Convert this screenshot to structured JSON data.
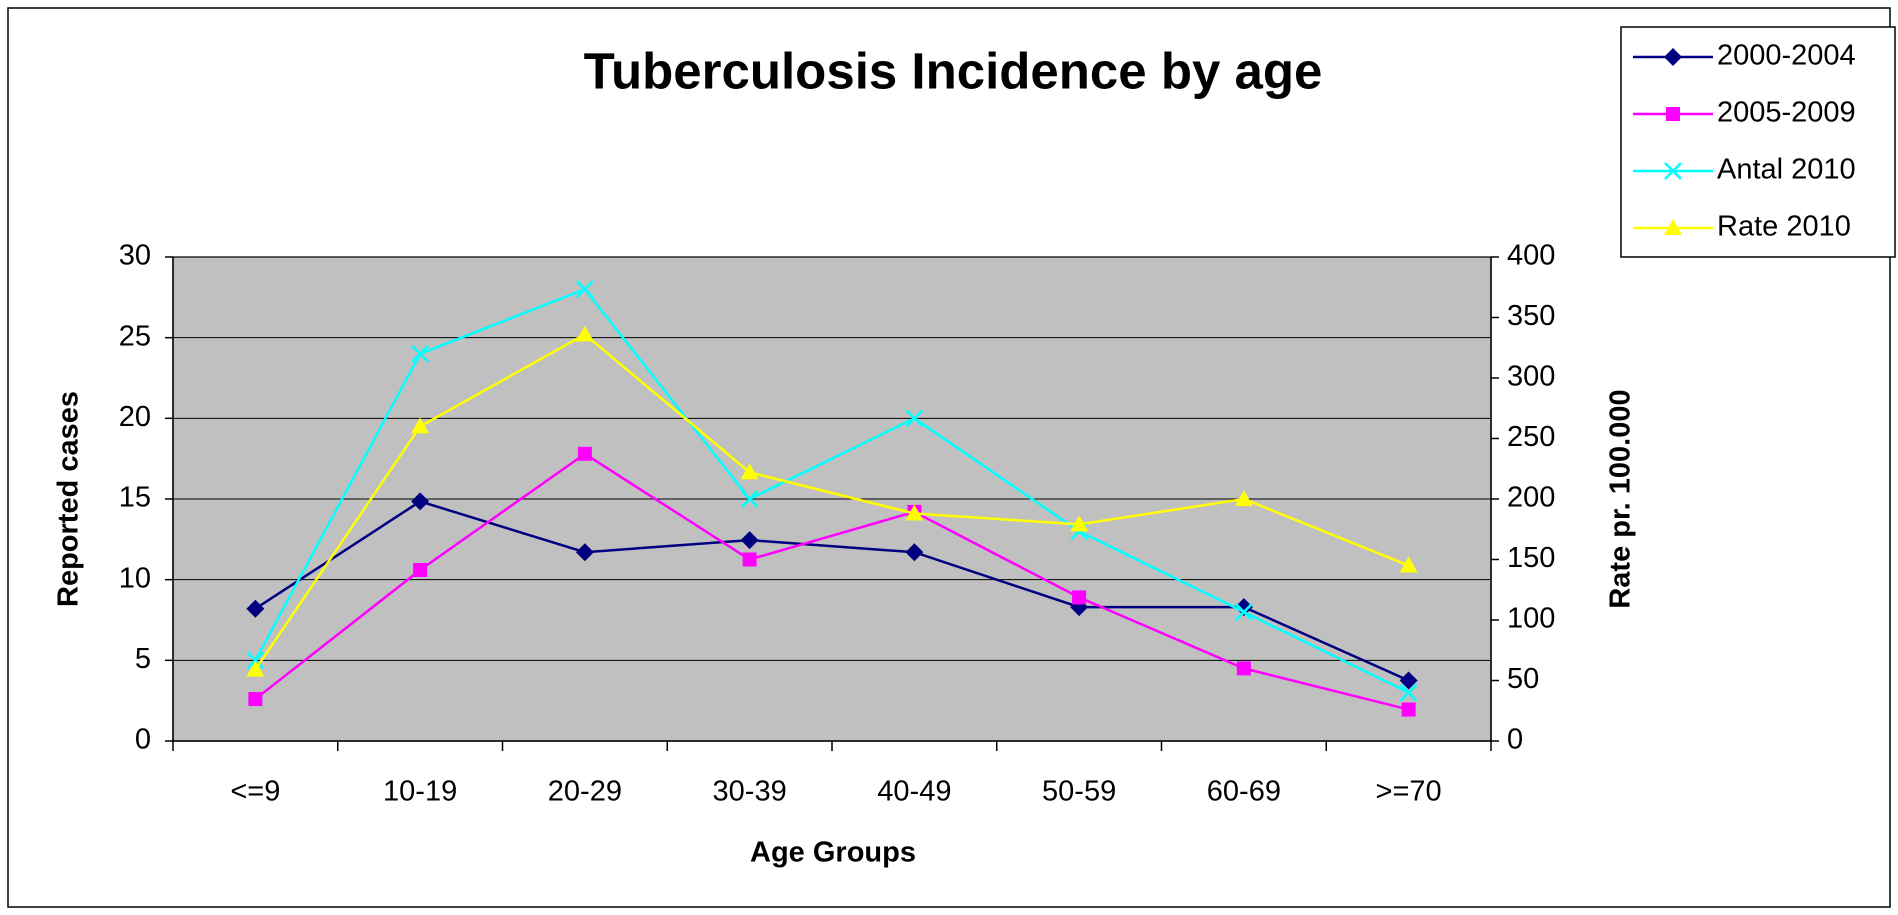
{
  "chart_data": {
    "type": "line",
    "title": "Tuberculosis Incidence by age",
    "x_label": "Age Groups",
    "y_label": "Reported cases",
    "y2_label": "Rate pr. 100.000",
    "categories": [
      "<=9",
      "10-19",
      "20-29",
      "30-39",
      "40-49",
      "50-59",
      "60-69",
      ">=70"
    ],
    "ylim": [
      0,
      30
    ],
    "yticks": [
      0,
      5,
      10,
      15,
      20,
      25,
      30
    ],
    "y2lim": [
      0,
      400
    ],
    "y2ticks": [
      0,
      50,
      100,
      150,
      200,
      250,
      300,
      350,
      400
    ],
    "grid": true,
    "plot_background": "#c0c0c0",
    "legend": "top-right",
    "series": [
      {
        "name": "2000-2004",
        "color": "#000080",
        "marker": "diamond",
        "values": [
          8.2,
          14.85,
          11.7,
          12.45,
          11.7,
          8.3,
          8.3,
          3.75
        ]
      },
      {
        "name": "2005-2009",
        "color": "#ff00ff",
        "marker": "square",
        "values": [
          2.6,
          10.6,
          17.8,
          11.25,
          14.2,
          8.9,
          4.5,
          1.95
        ]
      },
      {
        "name": "Antal 2010",
        "color": "#00ffff",
        "marker": "x",
        "values": [
          5,
          24,
          28,
          15,
          20,
          13,
          8,
          3
        ]
      },
      {
        "name": "Rate 2010",
        "color": "#ffff00",
        "marker": "triangle",
        "axis": "y2",
        "values": [
          59,
          260,
          336,
          222,
          188,
          179,
          200,
          145
        ]
      }
    ]
  }
}
